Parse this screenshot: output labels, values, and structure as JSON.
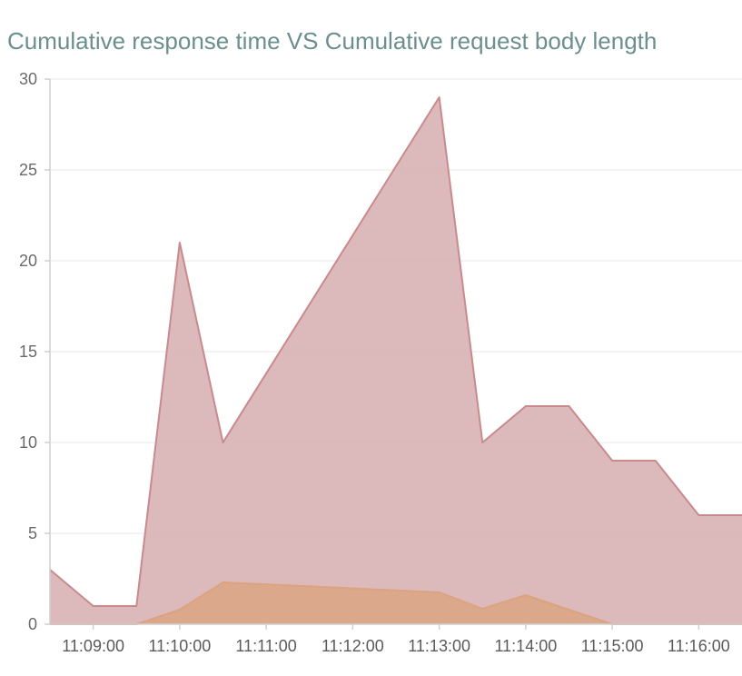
{
  "chart_data": {
    "type": "area",
    "title": "Cumulative response time VS Cumulative request body length",
    "xlabel": "",
    "ylabel": "",
    "ylim": [
      0,
      30
    ],
    "yticks": [
      0,
      5,
      10,
      15,
      20,
      25,
      30
    ],
    "xlim": [
      "11:08:30",
      "11:16:30"
    ],
    "xticks": [
      "11:09:00",
      "11:10:00",
      "11:11:00",
      "11:12:00",
      "11:13:00",
      "11:14:00",
      "11:15:00",
      "11:16:00"
    ],
    "grid": true,
    "legend": "none",
    "series": [
      {
        "color": "#c98a8d",
        "fill": "#d9b3b5",
        "points": [
          [
            "11:08:30",
            3
          ],
          [
            "11:09:00",
            1
          ],
          [
            "11:09:30",
            1
          ],
          [
            "11:10:00",
            21
          ],
          [
            "11:10:30",
            10
          ],
          [
            "11:13:00",
            29
          ],
          [
            "11:13:30",
            10
          ],
          [
            "11:14:00",
            12
          ],
          [
            "11:14:30",
            12
          ],
          [
            "11:15:00",
            9
          ],
          [
            "11:15:30",
            9
          ],
          [
            "11:16:00",
            6
          ],
          [
            "11:16:30",
            6
          ]
        ]
      },
      {
        "color": "#dba37f",
        "fill": "#daa583",
        "points": [
          [
            "11:08:30",
            0
          ],
          [
            "11:09:30",
            0
          ],
          [
            "11:10:00",
            0.8
          ],
          [
            "11:10:30",
            2.3
          ],
          [
            "11:13:00",
            1.75
          ],
          [
            "11:13:30",
            0.85
          ],
          [
            "11:14:00",
            1.6
          ],
          [
            "11:15:00",
            0
          ],
          [
            "11:16:30",
            0
          ]
        ]
      }
    ]
  }
}
